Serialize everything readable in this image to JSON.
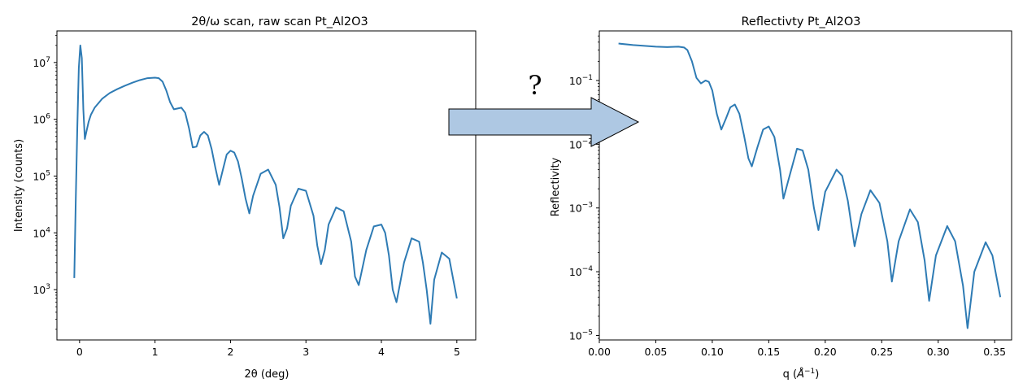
{
  "chart_data": [
    {
      "type": "line",
      "title": "2θ/ω scan, raw scan Pt_Al2O3",
      "xlabel": "2θ (deg)",
      "ylabel": "Intensity (counts)",
      "yscale": "log",
      "xlim": [
        -0.3,
        5.25
      ],
      "ylim": [
        130,
        36000000
      ],
      "x_ticks": [
        0,
        1,
        2,
        3,
        4,
        5
      ],
      "y_ticks": [
        {
          "value": 1000,
          "base": "10",
          "exp": "3"
        },
        {
          "value": 10000,
          "base": "10",
          "exp": "4"
        },
        {
          "value": 100000,
          "base": "10",
          "exp": "5"
        },
        {
          "value": 1000000,
          "base": "10",
          "exp": "6"
        },
        {
          "value": 10000000,
          "base": "10",
          "exp": "7"
        }
      ],
      "line_color": "#2e7bb4",
      "series": [
        {
          "x": [
            -0.07,
            -0.05,
            -0.03,
            -0.01,
            0.01,
            0.03,
            0.05,
            0.07,
            0.09,
            0.12,
            0.15,
            0.2,
            0.3,
            0.4,
            0.5,
            0.6,
            0.7,
            0.8,
            0.9,
            1.0,
            1.05,
            1.1,
            1.15,
            1.2,
            1.25,
            1.3,
            1.35,
            1.4,
            1.45,
            1.5,
            1.55,
            1.6,
            1.65,
            1.7,
            1.75,
            1.8,
            1.85,
            1.9,
            1.95,
            2.0,
            2.05,
            2.1,
            2.15,
            2.2,
            2.25,
            2.3,
            2.4,
            2.5,
            2.6,
            2.65,
            2.7,
            2.75,
            2.8,
            2.9,
            3.0,
            3.1,
            3.15,
            3.2,
            3.25,
            3.3,
            3.4,
            3.5,
            3.6,
            3.65,
            3.7,
            3.8,
            3.9,
            4.0,
            4.05,
            4.1,
            4.15,
            4.2,
            4.3,
            4.4,
            4.5,
            4.55,
            4.6,
            4.65,
            4.7,
            4.8,
            4.9,
            5.0
          ],
          "y": [
            1600,
            40000,
            700000,
            8000000,
            20000000,
            12000000,
            1500000,
            450000,
            600000,
            900000,
            1200000,
            1600000,
            2300000,
            2900000,
            3400000,
            3900000,
            4400000,
            4900000,
            5300000,
            5400000,
            5300000,
            4600000,
            3200000,
            2000000,
            1500000,
            1550000,
            1600000,
            1300000,
            700000,
            320000,
            330000,
            520000,
            600000,
            520000,
            300000,
            140000,
            70000,
            130000,
            240000,
            280000,
            260000,
            180000,
            90000,
            40000,
            22000,
            45000,
            110000,
            130000,
            70000,
            28000,
            8000,
            12000,
            30000,
            60000,
            55000,
            20000,
            6000,
            2800,
            5000,
            14000,
            28000,
            24000,
            7000,
            1700,
            1200,
            5000,
            13000,
            14000,
            10000,
            4000,
            1000,
            600,
            3000,
            8000,
            7000,
            3000,
            1000,
            250,
            1500,
            4500,
            3500,
            700
          ]
        }
      ]
    },
    {
      "type": "line",
      "title": "Reflectivty  Pt_Al2O3",
      "xlabel_prefix": "q (",
      "xlabel_unit": "Å",
      "xlabel_exp": "−1",
      "xlabel_suffix": ")",
      "ylabel": "Reflectivity",
      "yscale": "log",
      "xlim": [
        0.0,
        0.365
      ],
      "ylim": [
        8.5e-06,
        0.6
      ],
      "x_ticks": [
        0.0,
        0.05,
        0.1,
        0.15,
        0.2,
        0.25,
        0.3,
        0.35
      ],
      "x_tick_labels": [
        "0.00",
        "0.05",
        "0.10",
        "0.15",
        "0.20",
        "0.25",
        "0.30",
        "0.35"
      ],
      "y_ticks": [
        {
          "value": 1e-05,
          "base": "10",
          "exp": "−5"
        },
        {
          "value": 0.0001,
          "base": "10",
          "exp": "−4"
        },
        {
          "value": 0.001,
          "base": "10",
          "exp": "−3"
        },
        {
          "value": 0.01,
          "base": "10",
          "exp": "−2"
        },
        {
          "value": 0.1,
          "base": "10",
          "exp": "−1"
        }
      ],
      "line_color": "#2e7bb4",
      "series": [
        {
          "x": [
            0.017,
            0.03,
            0.04,
            0.05,
            0.06,
            0.07,
            0.075,
            0.078,
            0.082,
            0.086,
            0.09,
            0.094,
            0.097,
            0.1,
            0.104,
            0.108,
            0.112,
            0.116,
            0.12,
            0.124,
            0.128,
            0.132,
            0.135,
            0.14,
            0.145,
            0.15,
            0.155,
            0.16,
            0.163,
            0.168,
            0.175,
            0.18,
            0.185,
            0.19,
            0.194,
            0.2,
            0.21,
            0.215,
            0.22,
            0.226,
            0.232,
            0.24,
            0.248,
            0.255,
            0.259,
            0.265,
            0.275,
            0.282,
            0.288,
            0.292,
            0.298,
            0.308,
            0.315,
            0.322,
            0.326,
            0.332,
            0.342,
            0.348,
            0.355
          ],
          "y": [
            0.38,
            0.36,
            0.35,
            0.34,
            0.335,
            0.34,
            0.33,
            0.3,
            0.2,
            0.11,
            0.09,
            0.1,
            0.095,
            0.07,
            0.03,
            0.017,
            0.025,
            0.038,
            0.042,
            0.03,
            0.014,
            0.006,
            0.0045,
            0.009,
            0.017,
            0.019,
            0.013,
            0.004,
            0.0014,
            0.003,
            0.0085,
            0.008,
            0.004,
            0.001,
            0.00045,
            0.0018,
            0.004,
            0.0032,
            0.0013,
            0.00025,
            0.0008,
            0.0019,
            0.0012,
            0.0003,
            7e-05,
            0.0003,
            0.00095,
            0.0006,
            0.00015,
            3.5e-05,
            0.00018,
            0.00052,
            0.0003,
            6e-05,
            1.3e-05,
            0.0001,
            0.00029,
            0.00018,
            4e-05
          ]
        }
      ]
    }
  ],
  "annotation": {
    "question_mark": "?"
  }
}
